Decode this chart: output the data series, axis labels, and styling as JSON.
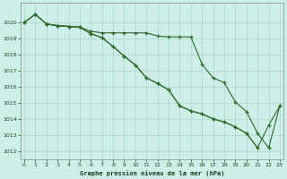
{
  "title": "Graphe pression niveau de la mer (hPa)",
  "bg_color": "#ceeee8",
  "grid_color": "#a8d8cc",
  "line_color": "#2d6a2d",
  "xlim": [
    -0.3,
    23.3
  ],
  "ylim": [
    1011.5,
    1021.2
  ],
  "yticks": [
    1012,
    1013,
    1014,
    1015,
    1016,
    1017,
    1018,
    1019,
    1020
  ],
  "xticks": [
    0,
    1,
    2,
    3,
    4,
    5,
    6,
    7,
    8,
    9,
    10,
    11,
    12,
    13,
    14,
    15,
    16,
    17,
    18,
    19,
    20,
    21,
    22,
    23
  ],
  "line1_x": [
    0,
    1,
    2,
    3,
    4,
    5,
    6,
    7,
    8,
    9,
    10,
    11,
    12,
    13,
    14,
    15,
    16,
    17,
    18,
    19,
    20,
    21,
    22,
    23
  ],
  "line1_y": [
    1020.0,
    1020.5,
    1019.9,
    1019.8,
    1019.75,
    1019.7,
    1019.45,
    1019.35,
    1019.35,
    1019.35,
    1019.35,
    1019.35,
    1019.15,
    1019.1,
    1019.1,
    1019.1,
    1017.4,
    1016.55,
    1016.25,
    1015.05,
    1014.45,
    1013.1,
    1012.2,
    1014.8
  ],
  "line2_x": [
    0,
    1,
    2,
    3,
    4,
    5,
    6,
    7,
    8,
    9,
    10,
    11,
    12,
    13,
    14,
    15,
    16,
    17,
    18,
    19,
    20,
    21,
    22,
    23
  ],
  "line2_y": [
    1020.0,
    1020.5,
    1019.9,
    1019.8,
    1019.75,
    1019.7,
    1019.3,
    1019.05,
    1018.5,
    1017.9,
    1017.35,
    1016.55,
    1016.2,
    1015.8,
    1014.8,
    1014.5,
    1014.3,
    1014.0,
    1013.8,
    1013.5,
    1013.1,
    1012.2,
    1013.6,
    1014.8
  ],
  "line3_x": [
    0,
    1,
    2,
    3,
    4,
    5,
    6,
    7,
    8,
    9,
    10,
    11,
    12,
    13,
    14,
    15,
    16,
    17,
    18,
    19,
    20,
    21
  ],
  "line3_y": [
    1020.0,
    1020.5,
    1019.9,
    1019.8,
    1019.75,
    1019.7,
    1019.3,
    1019.05,
    1018.5,
    1017.9,
    1017.35,
    1016.55,
    1016.2,
    1015.8,
    1014.8,
    1014.5,
    1014.3,
    1014.0,
    1013.8,
    1013.5,
    1013.1,
    1012.2
  ]
}
